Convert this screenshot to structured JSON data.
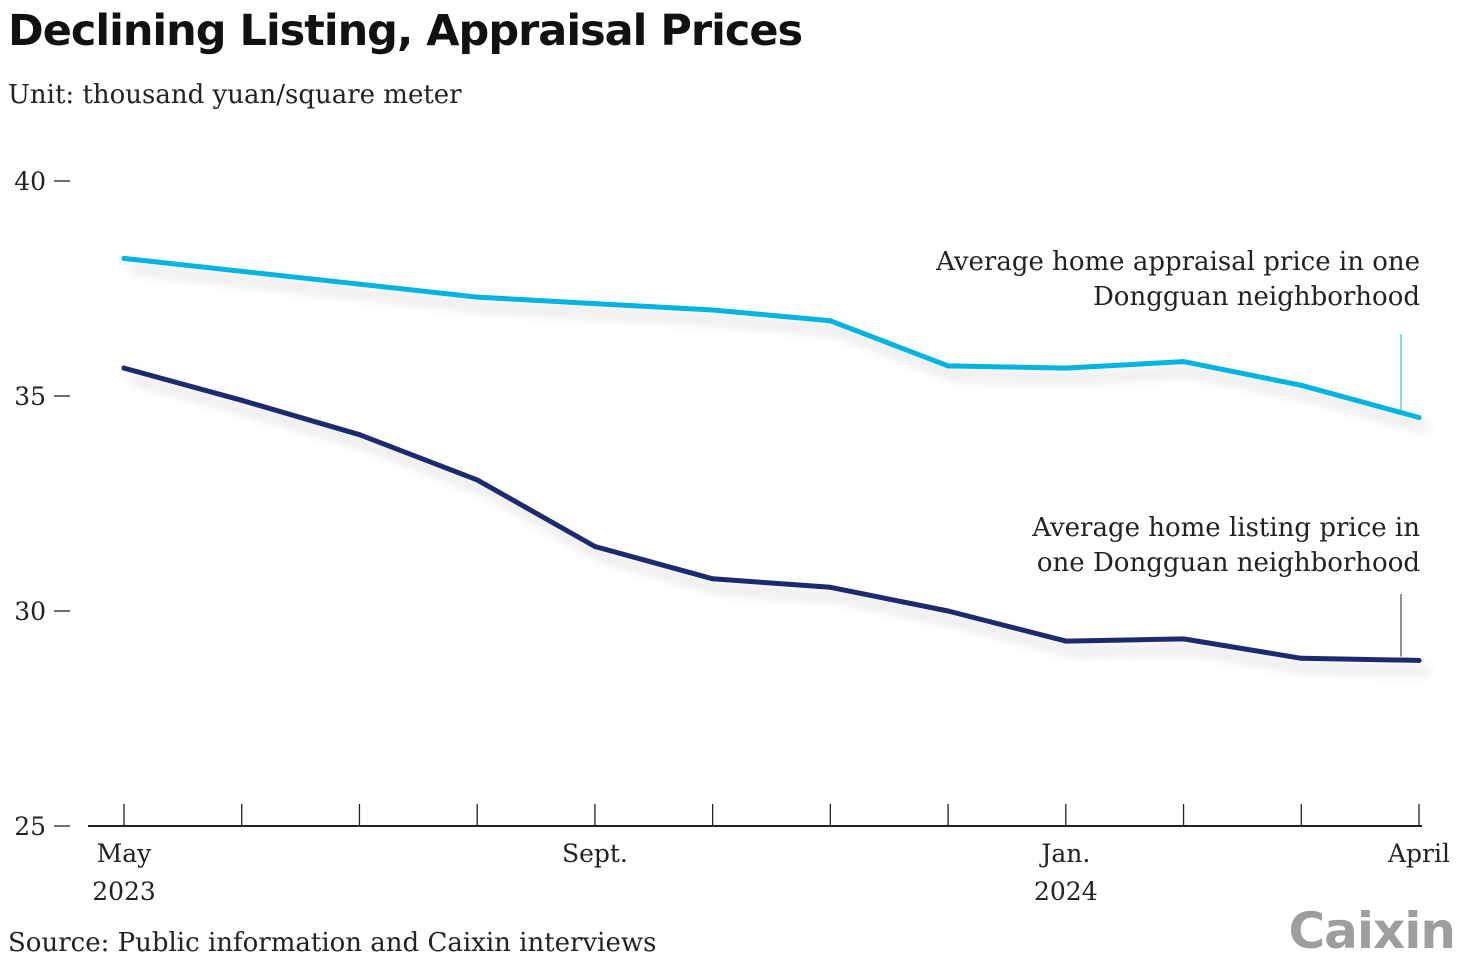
{
  "header": {
    "title": "Declining Listing, Appraisal Prices",
    "subtitle": "Unit: thousand yuan/square meter"
  },
  "footer": {
    "source": "Source: Public information and Caixin interviews",
    "logo_text": "Caixin"
  },
  "colors": {
    "appraisal": "#00b4e0",
    "listing": "#1f2a6e",
    "axis": "#222222"
  },
  "chart_data": {
    "type": "line",
    "title": "Declining Listing, Appraisal Prices",
    "subtitle": "Unit: thousand yuan/square meter",
    "x": [
      "2023-05",
      "2023-06",
      "2023-07",
      "2023-08",
      "2023-09",
      "2023-10",
      "2023-11",
      "2023-12",
      "2024-01",
      "2024-02",
      "2024-03",
      "2024-04"
    ],
    "x_tick_labels": [
      {
        "index": 0,
        "lines": [
          "May",
          "2023"
        ]
      },
      {
        "index": 4,
        "lines": [
          "Sept."
        ]
      },
      {
        "index": 8,
        "lines": [
          "Jan.",
          "2024"
        ]
      },
      {
        "index": 11,
        "lines": [
          "April"
        ]
      }
    ],
    "ylim": [
      25,
      40
    ],
    "yticks": [
      25,
      30,
      35,
      40
    ],
    "grid": false,
    "series": [
      {
        "key": "appraisal",
        "name": "Average home appraisal price in one Dongguan neighborhood",
        "label_lines": [
          "Average home appraisal price in one",
          "Dongguan neighborhood"
        ],
        "values": [
          38.2,
          37.9,
          37.6,
          37.3,
          37.15,
          37.0,
          36.75,
          35.7,
          35.65,
          35.8,
          35.25,
          34.5
        ]
      },
      {
        "key": "listing",
        "name": "Average home listing price in one Dongguan neighborhood",
        "label_lines": [
          "Average home listing price in",
          "one Dongguan neighborhood"
        ],
        "values": [
          35.65,
          34.9,
          34.1,
          33.05,
          31.5,
          30.75,
          30.55,
          30.0,
          29.3,
          29.35,
          28.9,
          28.85
        ]
      }
    ]
  }
}
